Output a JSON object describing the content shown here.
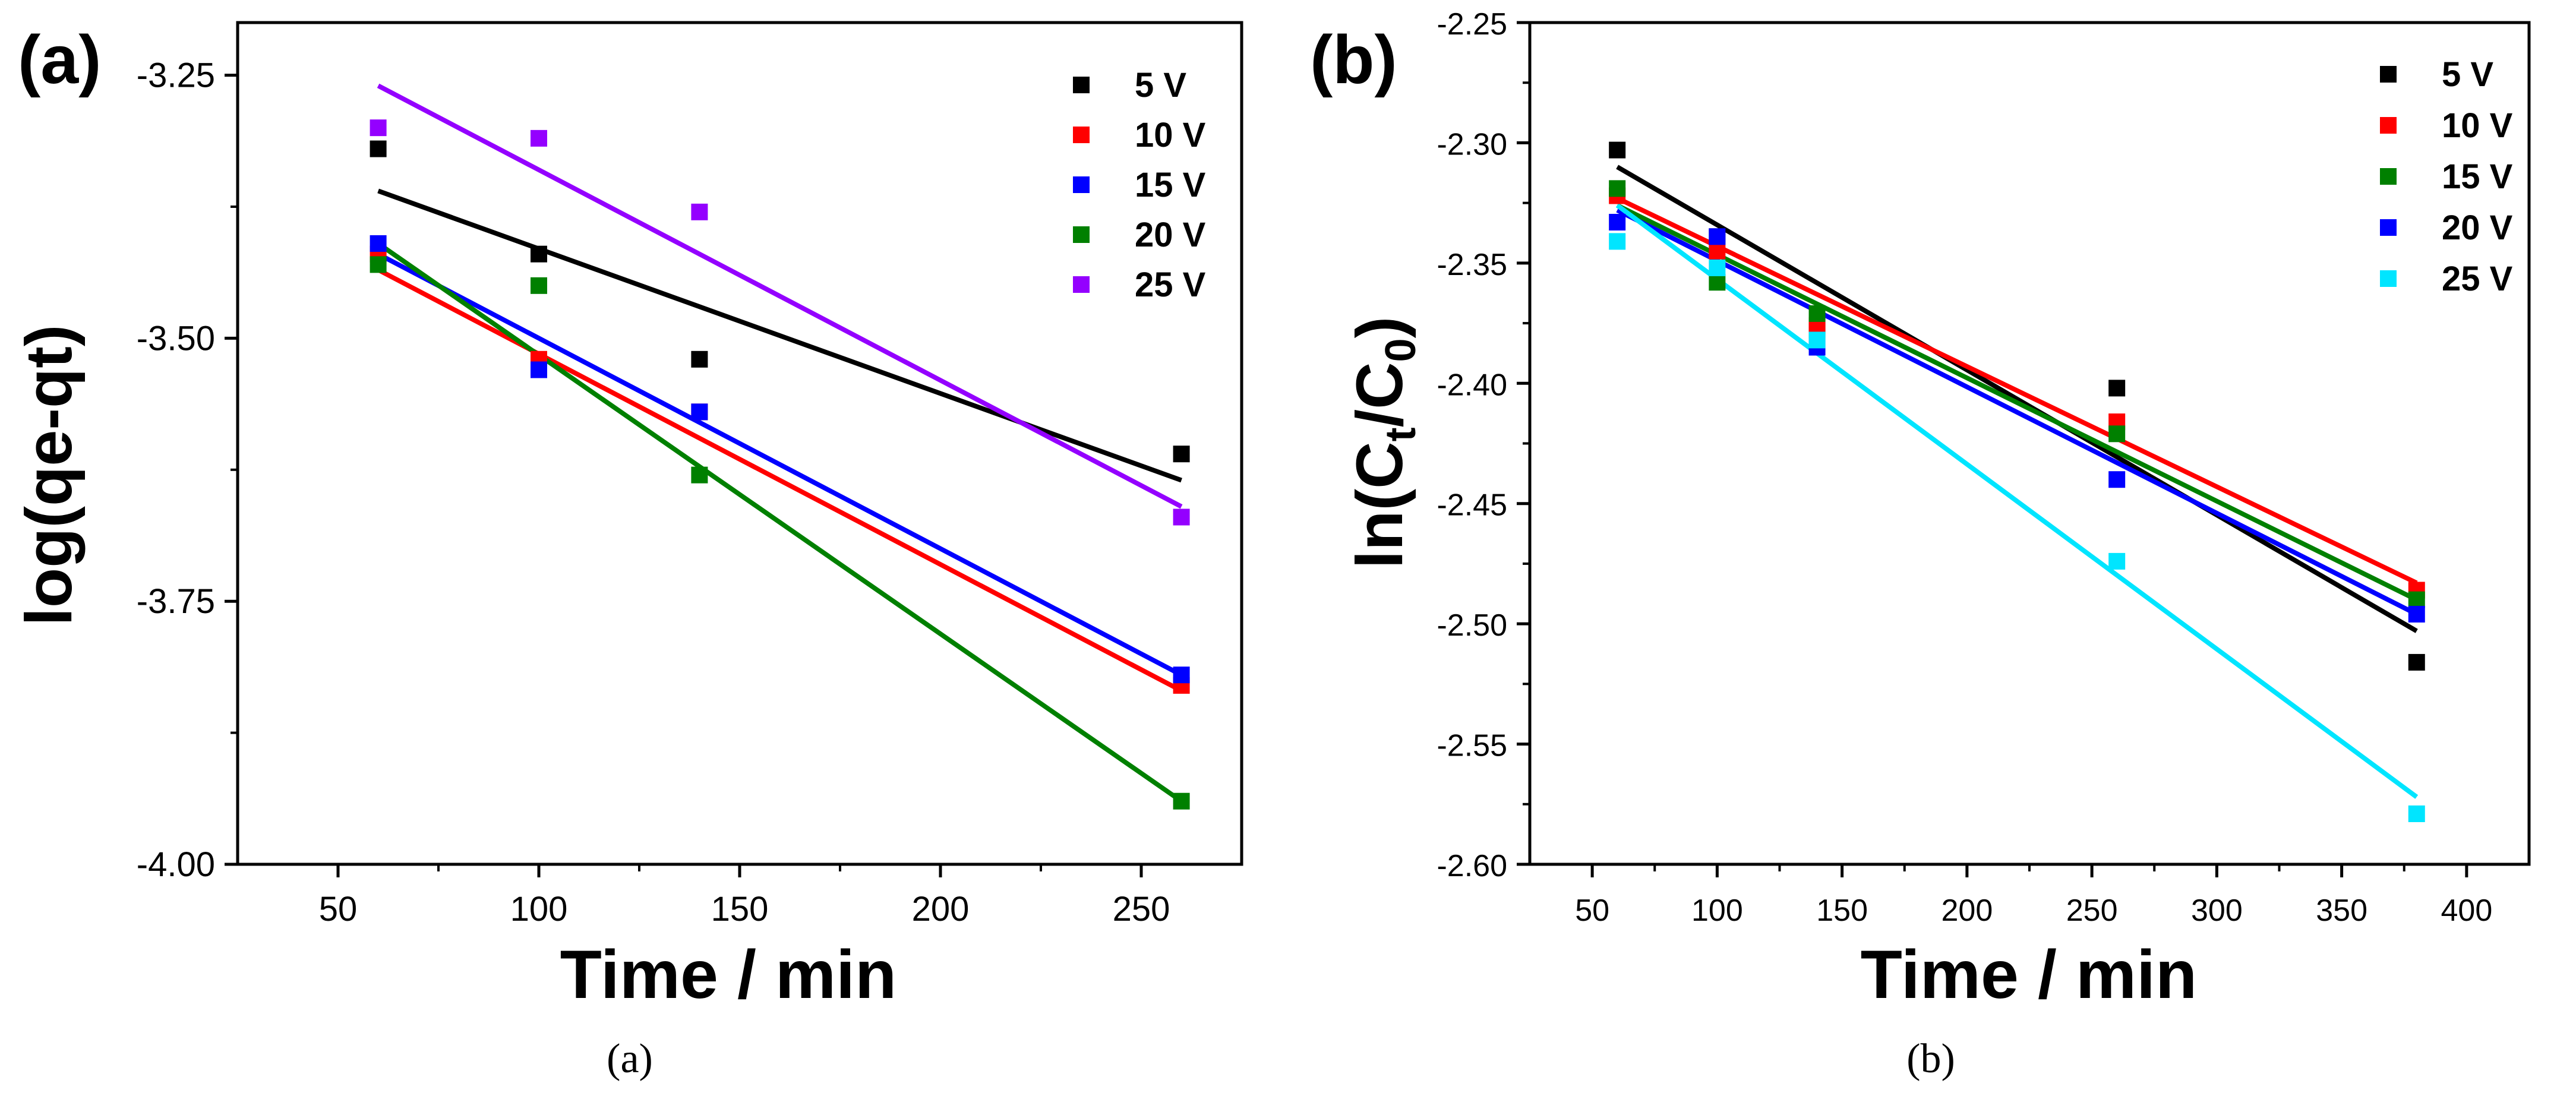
{
  "chart_data": [
    {
      "type": "scatter",
      "panel_label": "(a)",
      "caption": "(a)",
      "xlabel": "Time / min",
      "ylabel": "log(qe-qt)",
      "xlim": [
        25,
        275
      ],
      "ylim": [
        -4.0,
        -3.2
      ],
      "xticks": [
        50,
        100,
        150,
        200,
        250
      ],
      "xtick_labels": [
        "50",
        "100",
        "150",
        "200",
        "250"
      ],
      "yticks": [
        -4.0,
        -3.75,
        -3.5,
        -3.25
      ],
      "ytick_labels": [
        "-4.00",
        "-3.75",
        "-3.50",
        "-3.25"
      ],
      "grid": false,
      "legend_position": "top-right",
      "series": [
        {
          "name": "5 V",
          "color": "#000000",
          "x": [
            60,
            100,
            140,
            260
          ],
          "y": [
            -3.32,
            -3.42,
            -3.52,
            -3.61
          ],
          "fit": [
            [
              60,
              -3.36
            ],
            [
              260,
              -3.635
            ]
          ]
        },
        {
          "name": "10 V",
          "color": "#ff0000",
          "x": [
            60,
            100,
            140,
            260
          ],
          "y": [
            -3.42,
            -3.52,
            -3.57,
            -3.83
          ],
          "fit": [
            [
              60,
              -3.435
            ],
            [
              260,
              -3.835
            ]
          ]
        },
        {
          "name": "15 V",
          "color": "#0000ff",
          "x": [
            60,
            100,
            140,
            260
          ],
          "y": [
            -3.41,
            -3.53,
            -3.57,
            -3.82
          ],
          "fit": [
            [
              60,
              -3.42
            ],
            [
              260,
              -3.82
            ]
          ]
        },
        {
          "name": "20 V",
          "color": "#008000",
          "x": [
            60,
            100,
            140,
            260
          ],
          "y": [
            -3.43,
            -3.45,
            -3.63,
            -3.94
          ],
          "fit": [
            [
              60,
              -3.41
            ],
            [
              260,
              -3.94
            ]
          ]
        },
        {
          "name": "25 V",
          "color": "#9400ff",
          "x": [
            60,
            100,
            140,
            260
          ],
          "y": [
            -3.3,
            -3.31,
            -3.38,
            -3.67
          ],
          "fit": [
            [
              60,
              -3.26
            ],
            [
              260,
              -3.66
            ]
          ]
        }
      ]
    },
    {
      "type": "scatter",
      "panel_label": "(b)",
      "caption": "(b)",
      "xlabel": "Time / min",
      "ylabel_main": "ln(C",
      "ylabel_sub1": "t",
      "ylabel_mid": "/C",
      "ylabel_sub2": "0",
      "ylabel_end": ")",
      "xlim": [
        25,
        425
      ],
      "ylim": [
        -2.6,
        -2.25
      ],
      "xticks": [
        50,
        100,
        150,
        200,
        250,
        300,
        350,
        400
      ],
      "xtick_labels": [
        "50",
        "100",
        "150",
        "200",
        "250",
        "300",
        "350",
        "400"
      ],
      "yticks": [
        -2.6,
        -2.55,
        -2.5,
        -2.45,
        -2.4,
        -2.35,
        -2.3,
        -2.25
      ],
      "ytick_labels": [
        "-2.60",
        "-2.55",
        "-2.50",
        "-2.45",
        "-2.40",
        "-2.35",
        "-2.30",
        "-2.25"
      ],
      "grid": false,
      "legend_position": "top-right",
      "series": [
        {
          "name": "5 V",
          "color": "#000000",
          "x": [
            60,
            100,
            140,
            260,
            380
          ],
          "y": [
            -2.303,
            -2.339,
            -2.378,
            -2.402,
            -2.516
          ],
          "fit": [
            [
              60,
              -2.31
            ],
            [
              380,
              -2.503
            ]
          ]
        },
        {
          "name": "10 V",
          "color": "#ff0000",
          "x": [
            60,
            100,
            140,
            260,
            380
          ],
          "y": [
            -2.322,
            -2.345,
            -2.376,
            -2.416,
            -2.486
          ],
          "fit": [
            [
              60,
              -2.323
            ],
            [
              380,
              -2.483
            ]
          ]
        },
        {
          "name": "15 V",
          "color": "#008000",
          "x": [
            60,
            100,
            140,
            260,
            380
          ],
          "y": [
            -2.319,
            -2.358,
            -2.371,
            -2.421,
            -2.49
          ],
          "fit": [
            [
              60,
              -2.326
            ],
            [
              380,
              -2.49
            ]
          ]
        },
        {
          "name": "20 V",
          "color": "#0000ff",
          "x": [
            60,
            100,
            140,
            260,
            380
          ],
          "y": [
            -2.333,
            -2.339,
            -2.385,
            -2.44,
            -2.496
          ],
          "fit": [
            [
              60,
              -2.328
            ],
            [
              380,
              -2.496
            ]
          ]
        },
        {
          "name": "25 V",
          "color": "#00e5ff",
          "x": [
            60,
            100,
            140,
            260,
            380
          ],
          "y": [
            -2.341,
            -2.352,
            -2.382,
            -2.474,
            -2.579
          ],
          "fit": [
            [
              60,
              -2.326
            ],
            [
              380,
              -2.572
            ]
          ]
        }
      ]
    }
  ]
}
